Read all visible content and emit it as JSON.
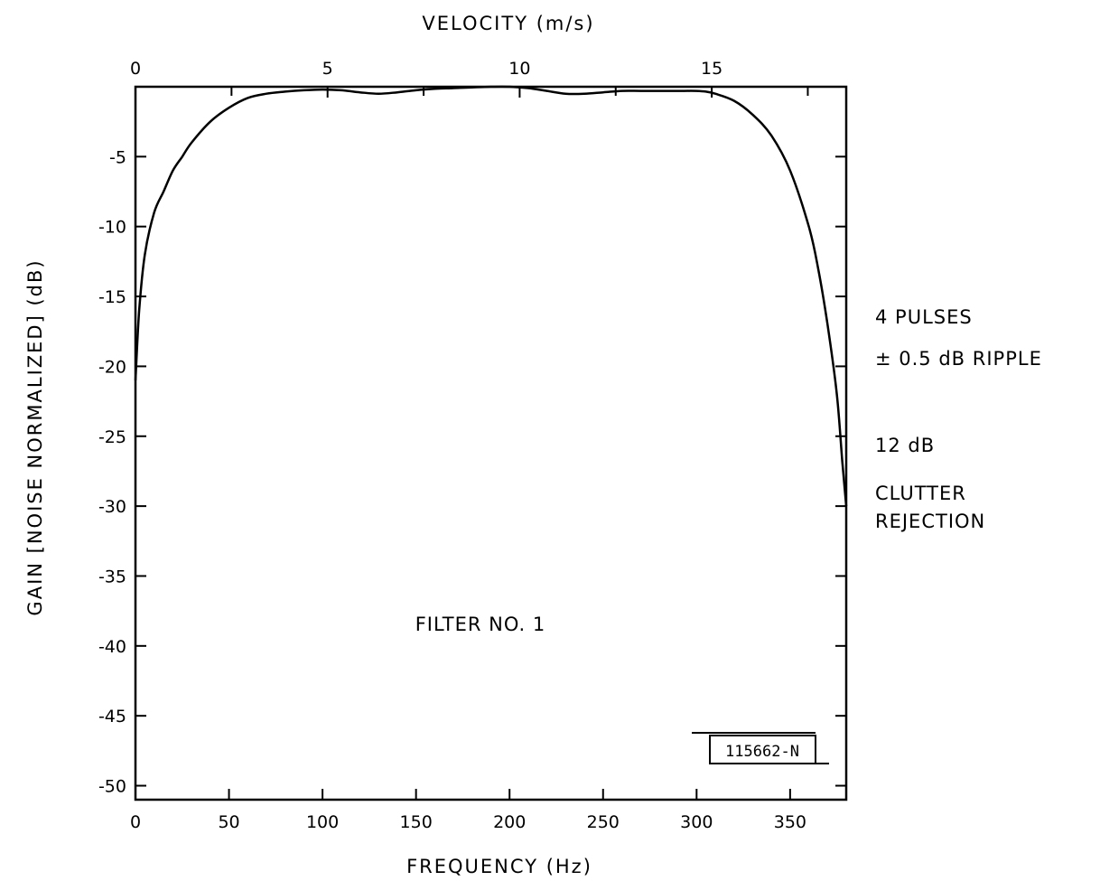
{
  "chart_data": {
    "type": "line",
    "title": "",
    "xlabel": "FREQUENCY (Hz)",
    "x2label": "VELOCITY (m/s)",
    "ylabel": "GAIN [NOISE NORMALIZED] (dB)",
    "xlim": [
      0,
      380
    ],
    "ylim": [
      -51,
      0
    ],
    "x2lim": [
      0,
      18.5
    ],
    "x_ticks": [
      0,
      50,
      100,
      150,
      200,
      250,
      300,
      350
    ],
    "x_tick_labels": [
      "0",
      "50",
      "100",
      "150",
      "200",
      "250",
      "300",
      "350"
    ],
    "x2_ticks": [
      0,
      5,
      10,
      15
    ],
    "x2_tick_labels": [
      "0",
      "5",
      "10",
      "15"
    ],
    "y_ticks": [
      -5,
      -10,
      -15,
      -20,
      -25,
      -30,
      -35,
      -40,
      -45,
      -50
    ],
    "y_tick_labels": [
      "-5",
      "-10",
      "-15",
      "-20",
      "-25",
      "-30",
      "-35",
      "-40",
      "-45",
      "-50"
    ],
    "grid": false,
    "series": [
      {
        "x": [
          0,
          2,
          5,
          10,
          15,
          20,
          25,
          30,
          40,
          50,
          60,
          70,
          80,
          90,
          100,
          110,
          120,
          130,
          140,
          150,
          160,
          170,
          180,
          190,
          200,
          210,
          220,
          230,
          240,
          250,
          260,
          270,
          280,
          290,
          300,
          305,
          310,
          320,
          330,
          340,
          350,
          360,
          365,
          370,
          375,
          378,
          380
        ],
        "y": [
          -21,
          -16,
          -12,
          -9,
          -7.5,
          -6,
          -5,
          -4,
          -2.5,
          -1.5,
          -0.8,
          -0.5,
          -0.35,
          -0.25,
          -0.2,
          -0.25,
          -0.4,
          -0.5,
          -0.4,
          -0.25,
          -0.15,
          -0.1,
          -0.05,
          0,
          0,
          -0.1,
          -0.3,
          -0.5,
          -0.5,
          -0.4,
          -0.3,
          -0.3,
          -0.3,
          -0.3,
          -0.3,
          -0.35,
          -0.5,
          -1,
          -2,
          -3.5,
          -6,
          -10,
          -13,
          -17,
          -22,
          -27,
          -30
        ]
      }
    ],
    "annotations": {
      "side_lines": [
        "4 PULSES",
        "± 0.5 dB RIPPLE",
        "12 dB",
        "CLUTTER",
        "REJECTION"
      ],
      "filter_label": "FILTER NO. 1",
      "figure_id": "115662-N"
    }
  }
}
